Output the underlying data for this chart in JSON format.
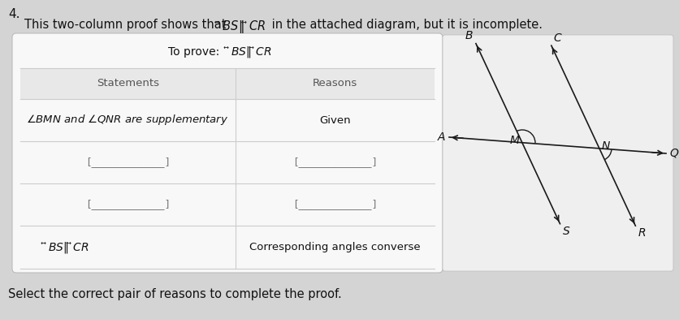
{
  "question_number": "4.",
  "intro_text1": "This two-column proof shows that ",
  "intro_suffix": " in the attached diagram, but it is incomplete.",
  "to_prove_label": "To prove: ",
  "col1_header": "Statements",
  "col2_header": "Reasons",
  "row0_stmt": "$\\angle BMN$ and $\\angle QNR$ are supplementary",
  "row0_reason": "Given",
  "blank": "[____________]",
  "last_stmt_math": true,
  "last_reason": "Corresponding angles converse",
  "footer": "Select the correct pair of reasons to complete the proof.",
  "bg_color": "#d4d4d4",
  "box_bg": "#f5f5f5",
  "table_white": "#ffffff",
  "header_bg": "#e6e6e6",
  "border_color": "#c0c0c0",
  "text_color": "#111111",
  "gray_text": "#888888"
}
